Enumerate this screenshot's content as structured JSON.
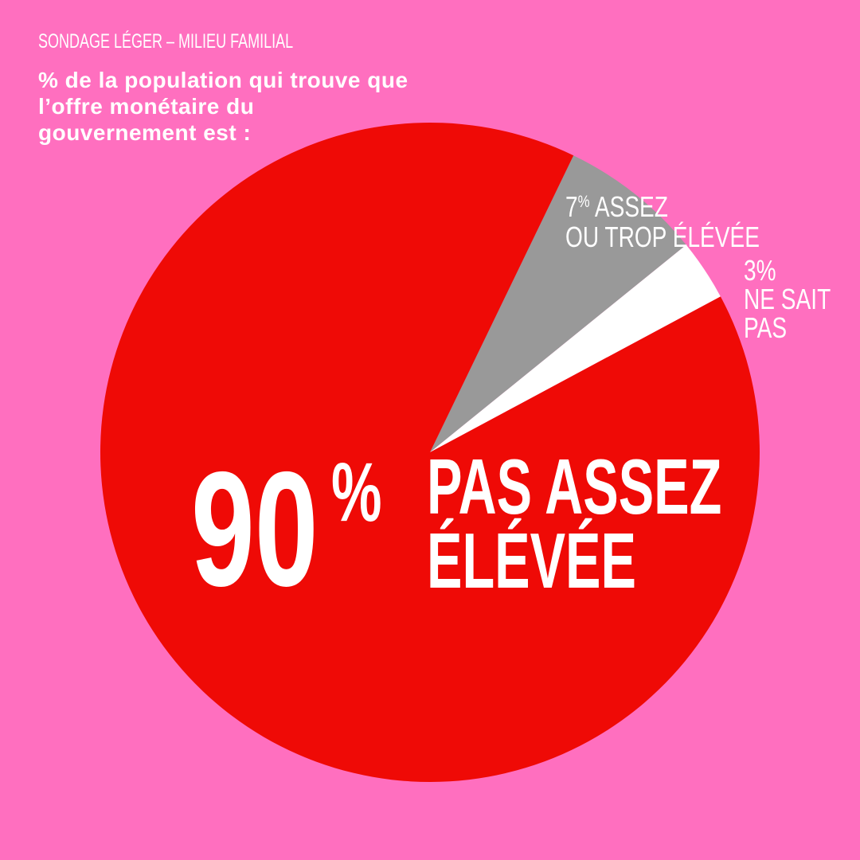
{
  "source": "SONDAGE LÉGER – MILIEU FAMILIAL",
  "title": "% de la population qui trouve que l’offre monétaire du gouvernement est :",
  "colors": {
    "background": "#ff6fbf",
    "red": "#ef0a06",
    "gray": "#999999",
    "white": "#ffffff"
  },
  "chart_data": {
    "type": "pie",
    "title": "% de la population qui trouve que l’offre monétaire du gouvernement est :",
    "slices": [
      {
        "label": "PAS ASSEZ ÉLÉVÉE",
        "value": 90,
        "color": "#ef0a06"
      },
      {
        "label": "ASSEZ OU TROP ÉLÉVÉE",
        "value": 7,
        "color": "#999999"
      },
      {
        "label": "NE SAIT PAS",
        "value": 3,
        "color": "#ffffff"
      }
    ]
  },
  "labels": {
    "big_value": "90",
    "big_pct": "%",
    "big_line1": "PAS ASSEZ",
    "big_line2": "ÉLÉVÉE",
    "gray_value": "7",
    "gray_pct": "%",
    "gray_line1": "ASSEZ",
    "gray_line2": "OU TROP ÉLÉVÉE",
    "white_value": "3%",
    "white_line1": "NE SAIT",
    "white_line2": "PAS"
  }
}
